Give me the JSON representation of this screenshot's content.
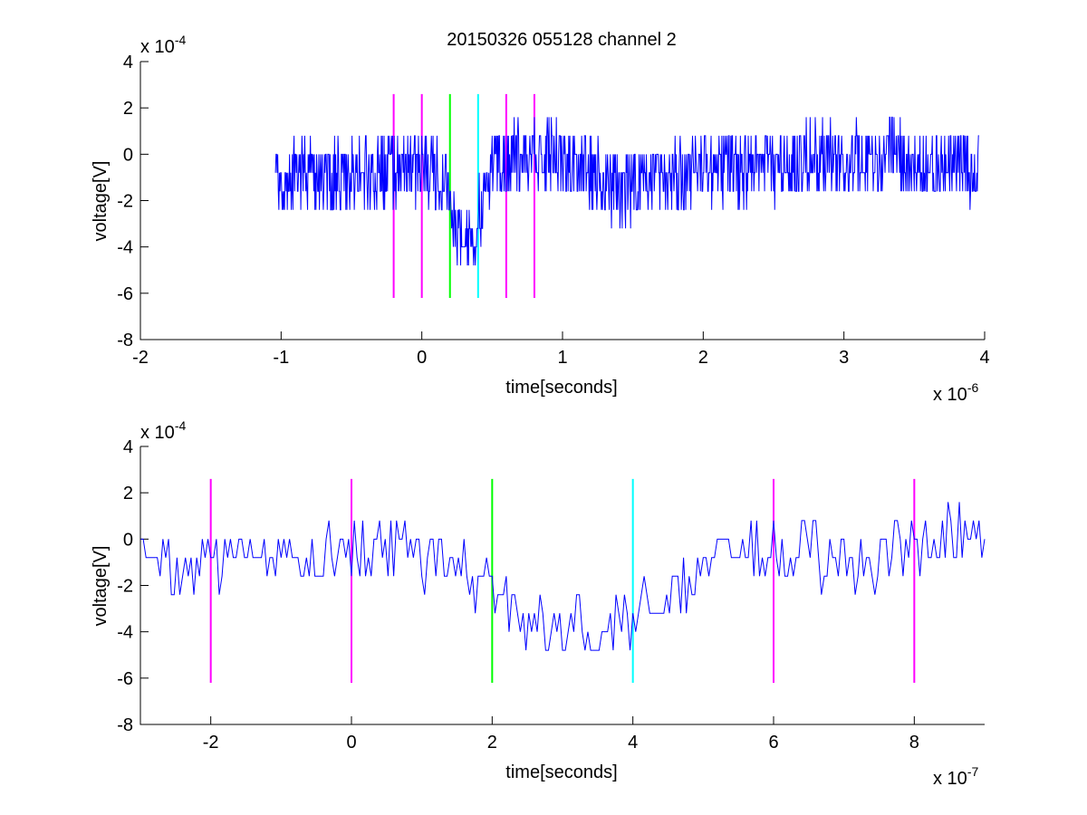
{
  "figure": {
    "title": "20150326 055128 channel 2"
  },
  "chart_data": [
    {
      "type": "line",
      "xlabel": "time[seconds]",
      "ylabel": "voltage[V]",
      "x_exponent": "x 10",
      "x_exponent_power": "-6",
      "y_exponent": "x 10",
      "y_exponent_power": "-4",
      "xlim": [
        -2,
        4
      ],
      "ylim": [
        -8,
        4
      ],
      "x_ticks": [
        -2,
        -1,
        0,
        1,
        2,
        3,
        4
      ],
      "y_ticks": [
        -8,
        -6,
        -4,
        -2,
        0,
        2,
        4
      ],
      "grid": false,
      "series_color": "#0000ff",
      "x_start": -1.04,
      "x_end": 3.96,
      "x_step": 0.004,
      "noise_profile": [
        [
          -1.04,
          -0.9
        ],
        [
          -0.6,
          -1.0
        ],
        [
          -0.35,
          -0.8
        ],
        [
          0.1,
          -0.6
        ],
        [
          0.18,
          -1.6
        ],
        [
          0.25,
          -3.2
        ],
        [
          0.34,
          -3.8
        ],
        [
          0.4,
          -2.8
        ],
        [
          0.5,
          -0.5
        ],
        [
          0.8,
          0.0
        ],
        [
          1.2,
          -0.6
        ],
        [
          1.4,
          -1.5
        ],
        [
          2.0,
          -0.8
        ],
        [
          2.5,
          -0.5
        ],
        [
          3.0,
          0.0
        ],
        [
          3.96,
          -0.6
        ]
      ],
      "vlines": [
        {
          "x": -0.2,
          "color": "#ff00ff",
          "ymin": -6.2,
          "ymax": 2.6
        },
        {
          "x": 0.0,
          "color": "#ff00ff",
          "ymin": -6.2,
          "ymax": 2.6
        },
        {
          "x": 0.2,
          "color": "#00ff00",
          "ymin": -6.2,
          "ymax": 2.6
        },
        {
          "x": 0.4,
          "color": "#00ffff",
          "ymin": -6.2,
          "ymax": 2.6
        },
        {
          "x": 0.6,
          "color": "#ff00ff",
          "ymin": -6.2,
          "ymax": 2.6
        },
        {
          "x": 0.8,
          "color": "#ff00ff",
          "ymin": -6.2,
          "ymax": 2.6
        }
      ]
    },
    {
      "type": "line",
      "xlabel": "time[seconds]",
      "ylabel": "voltage[V]",
      "x_exponent": "x 10",
      "x_exponent_power": "-7",
      "y_exponent": "x 10",
      "y_exponent_power": "-4",
      "xlim": [
        -3,
        9
      ],
      "ylim": [
        -8,
        4
      ],
      "x_ticks": [
        -2,
        0,
        2,
        4,
        6,
        8
      ],
      "y_ticks": [
        -8,
        -6,
        -4,
        -2,
        0,
        2,
        4
      ],
      "grid": false,
      "series_color": "#0000ff",
      "x_start": -3,
      "x_end": 9,
      "x_step": 0.04,
      "noise_profile": [
        [
          -3.0,
          -0.3
        ],
        [
          -2.5,
          -1.3
        ],
        [
          -1.5,
          -0.7
        ],
        [
          -0.5,
          -0.4
        ],
        [
          0.5,
          -0.5
        ],
        [
          1.2,
          -1.0
        ],
        [
          1.8,
          -1.7
        ],
        [
          2.3,
          -3.2
        ],
        [
          3.0,
          -3.8
        ],
        [
          3.4,
          -4.0
        ],
        [
          3.9,
          -3.4
        ],
        [
          4.5,
          -2.0
        ],
        [
          5.0,
          -1.6
        ],
        [
          5.5,
          -0.4
        ],
        [
          6.5,
          -0.7
        ],
        [
          7.5,
          -1.0
        ],
        [
          8.5,
          0.2
        ],
        [
          9.0,
          0.0
        ]
      ],
      "vlines": [
        {
          "x": -2,
          "color": "#ff00ff",
          "ymin": -6.2,
          "ymax": 2.6
        },
        {
          "x": 0,
          "color": "#ff00ff",
          "ymin": -6.2,
          "ymax": 2.6
        },
        {
          "x": 2,
          "color": "#00ff00",
          "ymin": -6.2,
          "ymax": 2.6
        },
        {
          "x": 4,
          "color": "#00ffff",
          "ymin": -6.2,
          "ymax": 2.6
        },
        {
          "x": 6,
          "color": "#ff00ff",
          "ymin": -6.2,
          "ymax": 2.6
        },
        {
          "x": 8,
          "color": "#ff00ff",
          "ymin": -6.2,
          "ymax": 2.6
        }
      ]
    }
  ]
}
